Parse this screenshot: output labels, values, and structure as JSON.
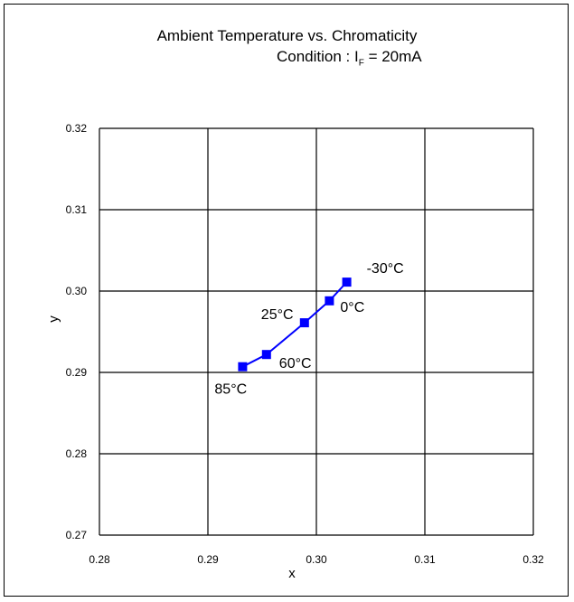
{
  "chart_data": {
    "type": "line",
    "title": "Ambient Temperature vs. Chromaticity",
    "subtitle": {
      "prefix": "Condition : I",
      "subscript": "F",
      "suffix": " = 20mA"
    },
    "xlabel": "x",
    "ylabel": "y",
    "xlim": [
      0.28,
      0.32
    ],
    "ylim": [
      0.27,
      0.32
    ],
    "x_ticks": [
      "0.28",
      "0.29",
      "0.30",
      "0.31",
      "0.32"
    ],
    "y_ticks": [
      "0.27",
      "0.28",
      "0.29",
      "0.30",
      "0.31",
      "0.32"
    ],
    "grid": true,
    "series": [
      {
        "color": "#0000ff",
        "marker": "square",
        "points": [
          {
            "label": "85°C",
            "x": 0.2932,
            "y": 0.2907
          },
          {
            "label": "60°C",
            "x": 0.2954,
            "y": 0.2922
          },
          {
            "label": "25°C",
            "x": 0.2989,
            "y": 0.2961
          },
          {
            "label": "0°C",
            "x": 0.3012,
            "y": 0.2988
          },
          {
            "label": "-30°C",
            "x": 0.3028,
            "y": 0.3011
          }
        ]
      }
    ]
  }
}
